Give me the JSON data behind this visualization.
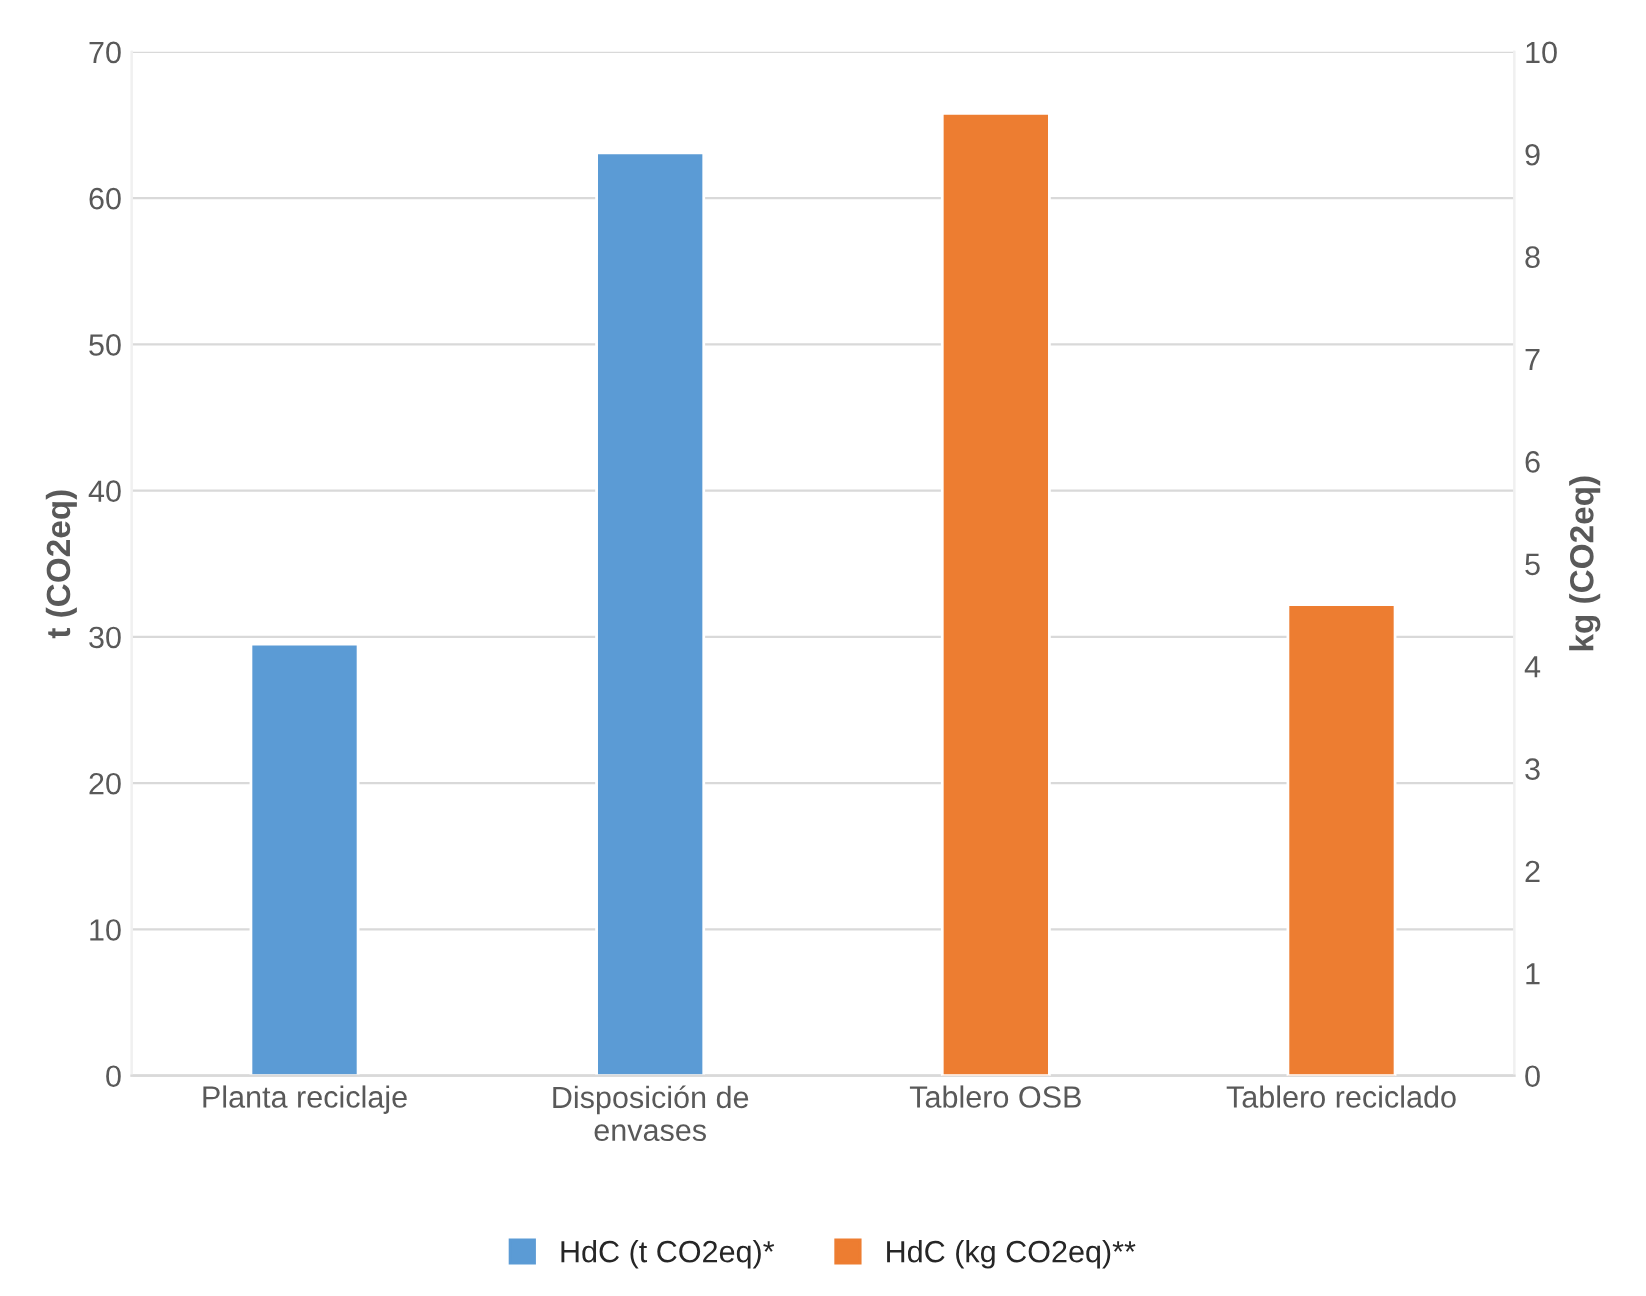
{
  "chart_data": {
    "type": "bar",
    "categories": [
      "Planta reciclaje",
      "Disposición de envases",
      "Tablero OSB",
      "Tablero reciclado"
    ],
    "series": [
      {
        "name": "HdC (t CO2eq)*",
        "color": "#5b9bd5",
        "values": [
          29.5,
          63.1,
          null,
          null
        ]
      },
      {
        "name": "HdC (kg CO2eq)**",
        "color": "#ed7d31",
        "axis": "y2",
        "values": [
          null,
          null,
          9.4,
          4.6
        ]
      }
    ],
    "ylabel": "t (CO2eq)",
    "y2label": "kg (CO2eq)",
    "ylim": [
      0,
      70
    ],
    "yticks": [
      0,
      10,
      20,
      30,
      40,
      50,
      60,
      70
    ],
    "y2lim": [
      0,
      10
    ],
    "y2ticks": [
      0,
      1,
      2,
      3,
      4,
      5,
      6,
      7,
      8,
      9,
      10
    ],
    "grid": "y",
    "legend": "bottom"
  }
}
